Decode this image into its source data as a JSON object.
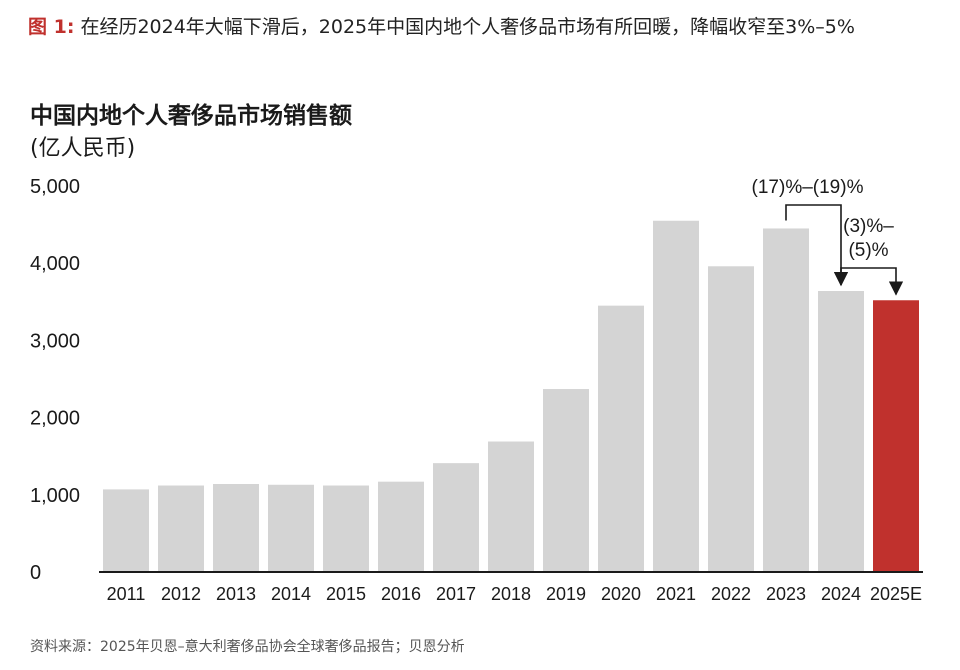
{
  "caption": {
    "label": "图 1:",
    "text": "在经历2024年大幅下滑后，2025年中国内地个人奢侈品市场有所回暖，降幅收窄至3%–5%"
  },
  "chart_data": {
    "type": "bar",
    "title": "中国内地个人奢侈品市场销售额",
    "ylabel": "(亿人民币)",
    "xlabel": "",
    "categories": [
      "2011",
      "2012",
      "2013",
      "2014",
      "2015",
      "2016",
      "2017",
      "2018",
      "2019",
      "2020",
      "2021",
      "2022",
      "2023",
      "2024",
      "2025E"
    ],
    "values": [
      1070,
      1120,
      1140,
      1130,
      1120,
      1170,
      1410,
      1690,
      2370,
      3450,
      4550,
      3960,
      4450,
      3640,
      3520
    ],
    "ylim": [
      0,
      5000
    ],
    "yticks": [
      0,
      1000,
      2000,
      3000,
      4000,
      5000
    ],
    "ytick_labels": [
      "0",
      "1,000",
      "2,000",
      "3,000",
      "4,000",
      "5,000"
    ],
    "grid": false,
    "colors": {
      "default": "#d4d4d4",
      "highlight": "#c0312d",
      "axis": "#1a1a1a",
      "annotation": "#1a1a1a"
    },
    "highlight_index": 14,
    "annotations": [
      {
        "text_lines": [
          "(17)%–(19)%"
        ],
        "from": "2023",
        "to": "2024"
      },
      {
        "text_lines": [
          "(3)%–",
          "(5)%"
        ],
        "from": "2024",
        "to": "2025E"
      }
    ]
  },
  "source": "资料来源：2025年贝恩–意大利奢侈品协会全球奢侈品报告；贝恩分析"
}
